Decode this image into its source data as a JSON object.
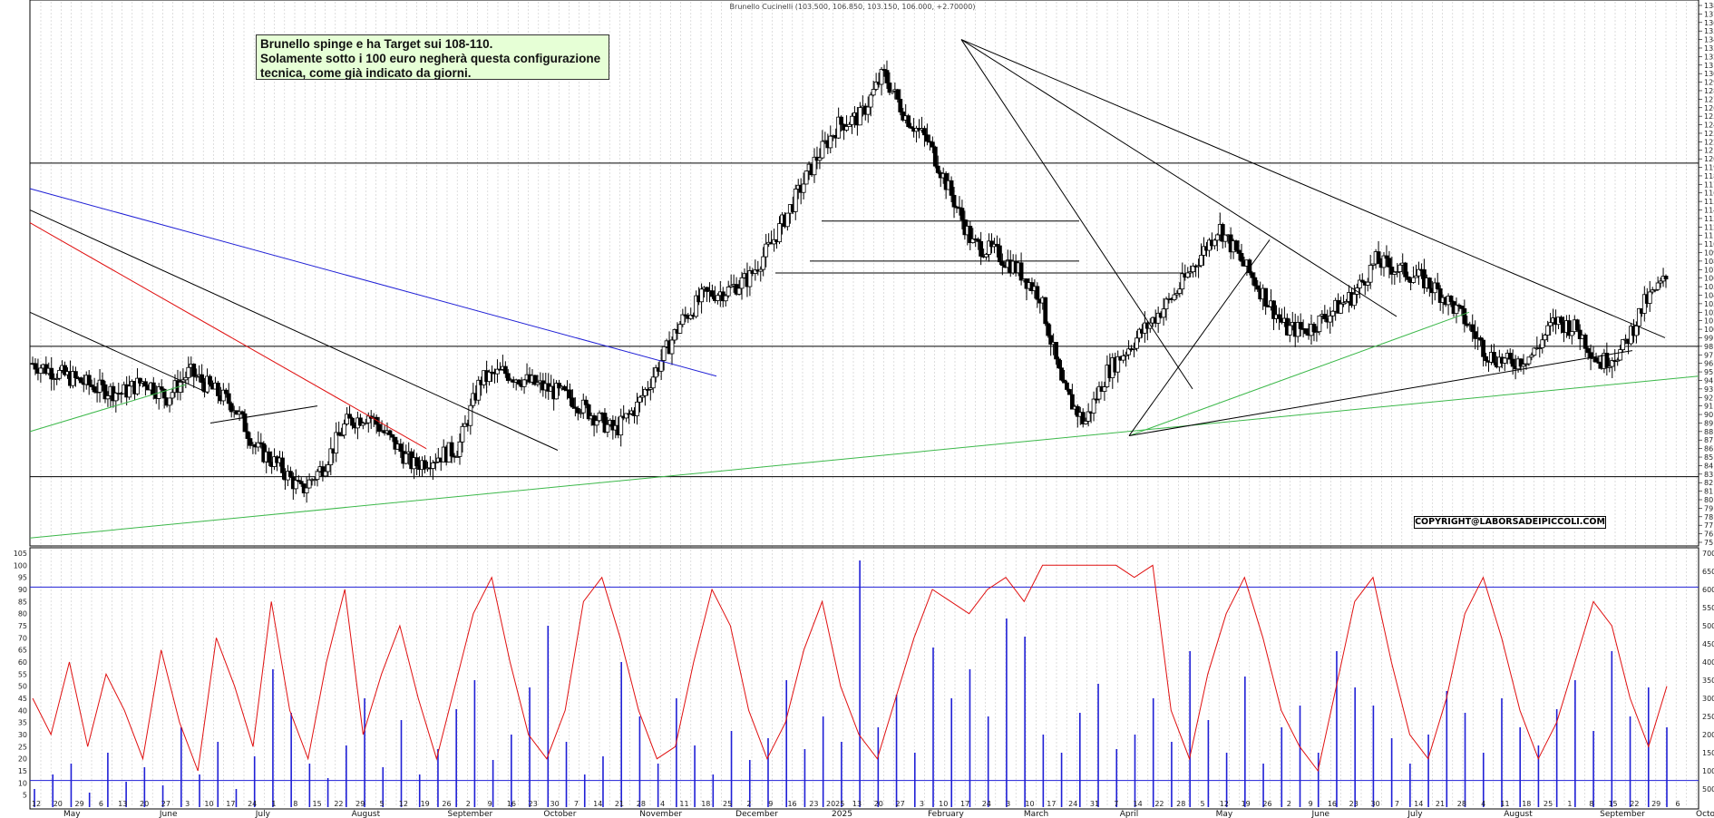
{
  "header": {
    "title": "Brunello Cucinelli (103.500, 106.850, 103.150, 106.000, +2.70000)"
  },
  "annotation": {
    "line1": "Brunello spinge e ha Target sui 108-110.",
    "line2": "Solamente sotto i 100 euro negherà questa configurazione",
    "line3": "tecnica, come già indicato da giorni."
  },
  "copyright": "COPYRIGHT@LABORSADEIPICCOLI.COM",
  "colors": {
    "candle": "#000000",
    "volume": "#1f1fd6",
    "oscillator": "#e01010",
    "band": "#1f1fd6",
    "trend_green": "#3cb84a",
    "trend_red": "#e01010",
    "trend_blue": "#1f1fd6"
  },
  "x_axis": {
    "days": [
      "12",
      "20",
      "29",
      "6",
      "13",
      "20",
      "27",
      "3",
      "10",
      "17",
      "24",
      "1",
      "8",
      "15",
      "22",
      "29",
      "5",
      "12",
      "19",
      "26",
      "2",
      "9",
      "16",
      "23",
      "30",
      "7",
      "14",
      "21",
      "28",
      "4",
      "11",
      "18",
      "25",
      "2",
      "9",
      "16",
      "23",
      "2025",
      "13",
      "20",
      "27",
      "3",
      "10",
      "17",
      "24",
      "3",
      "10",
      "17",
      "24",
      "31",
      "7",
      "14",
      "22",
      "28",
      "5",
      "12",
      "19",
      "26",
      "2",
      "9",
      "16",
      "23",
      "30",
      "7",
      "14",
      "21",
      "28",
      "4",
      "11",
      "18",
      "25",
      "1",
      "8",
      "15",
      "22",
      "29",
      "6"
    ],
    "months": [
      "May",
      "June",
      "July",
      "August",
      "September",
      "October",
      "November",
      "December",
      "2025",
      "February",
      "March",
      "April",
      "May",
      "June",
      "July",
      "August",
      "September",
      "October"
    ]
  },
  "chart_data": [
    {
      "type": "candlestick",
      "title": "Brunello Cucinelli (103.500, 106.850, 103.150, 106.000, +2.70000)",
      "ylim": [
        75,
        138
      ],
      "y_ticks_step": 1,
      "grid": "vertical dotted",
      "last_bar": {
        "open": 103.5,
        "high": 106.85,
        "low": 103.15,
        "close": 106.0,
        "change": 2.7
      },
      "horizontal_levels": [
        119.5,
        98.0,
        82.7
      ],
      "resistance_lines": [
        {
          "from": [
            112.7,
            "Dec"
          ],
          "to": [
            112.7,
            "Mar"
          ]
        },
        {
          "from": [
            108.0,
            "Dec"
          ],
          "to": [
            108.0,
            "Mar"
          ]
        },
        {
          "from": [
            106.6,
            "Nov"
          ],
          "to": [
            106.6,
            "Apr"
          ]
        }
      ],
      "price_path": [
        [
          0,
          96
        ],
        [
          10,
          95
        ],
        [
          20,
          94
        ],
        [
          30,
          93
        ],
        [
          40,
          92.5
        ],
        [
          50,
          94
        ],
        [
          60,
          92
        ],
        [
          70,
          95
        ],
        [
          80,
          93
        ],
        [
          90,
          91
        ],
        [
          100,
          86
        ],
        [
          110,
          84
        ],
        [
          120,
          81
        ],
        [
          130,
          84
        ],
        [
          140,
          89
        ],
        [
          150,
          90
        ],
        [
          160,
          87
        ],
        [
          170,
          84
        ],
        [
          180,
          85
        ],
        [
          190,
          86
        ],
        [
          200,
          94
        ],
        [
          210,
          95
        ],
        [
          220,
          94
        ],
        [
          230,
          93
        ],
        [
          240,
          92
        ],
        [
          250,
          90
        ],
        [
          260,
          88
        ],
        [
          270,
          91
        ],
        [
          280,
          96
        ],
        [
          290,
          101
        ],
        [
          300,
          104
        ],
        [
          310,
          104.5
        ],
        [
          320,
          106
        ],
        [
          330,
          110
        ],
        [
          340,
          115
        ],
        [
          350,
          120
        ],
        [
          360,
          124
        ],
        [
          370,
          125
        ],
        [
          380,
          130
        ],
        [
          390,
          125
        ],
        [
          400,
          122
        ],
        [
          410,
          116
        ],
        [
          420,
          110
        ],
        [
          430,
          109
        ],
        [
          440,
          107
        ],
        [
          450,
          104
        ],
        [
          460,
          93
        ],
        [
          470,
          89
        ],
        [
          480,
          95
        ],
        [
          490,
          98
        ],
        [
          500,
          101
        ],
        [
          510,
          104
        ],
        [
          520,
          108
        ],
        [
          530,
          112
        ],
        [
          540,
          108
        ],
        [
          550,
          104
        ],
        [
          560,
          100
        ],
        [
          570,
          100
        ],
        [
          580,
          102
        ],
        [
          590,
          104
        ],
        [
          600,
          108
        ],
        [
          610,
          107
        ],
        [
          620,
          106
        ],
        [
          630,
          104
        ],
        [
          640,
          101
        ],
        [
          650,
          97
        ],
        [
          660,
          96
        ],
        [
          670,
          97
        ],
        [
          680,
          101
        ],
        [
          690,
          100
        ],
        [
          700,
          96
        ],
        [
          710,
          97.5
        ],
        [
          720,
          103
        ],
        [
          730,
          106
        ]
      ]
    },
    {
      "type": "line+bar",
      "ylim": [
        0,
        105
      ],
      "y2lim": [
        0,
        70000
      ],
      "y_ticks_step": 5,
      "y2_ticks_step": 5000,
      "upper_band": 91,
      "lower_band": 11,
      "oscillator": [
        45,
        30,
        60,
        25,
        55,
        40,
        20,
        65,
        35,
        15,
        70,
        50,
        25,
        85,
        40,
        20,
        60,
        90,
        30,
        55,
        75,
        45,
        20,
        50,
        80,
        95,
        60,
        30,
        20,
        40,
        85,
        95,
        70,
        40,
        20,
        25,
        60,
        90,
        75,
        40,
        20,
        35,
        65,
        85,
        50,
        30,
        20,
        45,
        70,
        90,
        85,
        80,
        90,
        95,
        85,
        100,
        100,
        100,
        100,
        100,
        95,
        100,
        40,
        20,
        55,
        80,
        95,
        70,
        40,
        25,
        15,
        50,
        85,
        95,
        60,
        30,
        20,
        45,
        80,
        95,
        70,
        40,
        20,
        35,
        60,
        85,
        75,
        45,
        25,
        50
      ],
      "volume": [
        5000,
        9000,
        12000,
        4000,
        15000,
        7000,
        11000,
        6000,
        22000,
        9000,
        18000,
        5000,
        14000,
        38000,
        26000,
        12000,
        8000,
        17000,
        30000,
        11000,
        24000,
        9000,
        16000,
        27000,
        35000,
        13000,
        20000,
        33000,
        50000,
        18000,
        9000,
        14000,
        40000,
        25000,
        12000,
        30000,
        17000,
        9000,
        21000,
        13000,
        19000,
        35000,
        16000,
        25000,
        18000,
        68000,
        22000,
        31000,
        15000,
        44000,
        30000,
        38000,
        25000,
        52000,
        47000,
        20000,
        15000,
        26000,
        34000,
        16000,
        20000,
        30000,
        18000,
        43000,
        24000,
        15000,
        36000,
        12000,
        22000,
        28000,
        15000,
        43000,
        33000,
        28000,
        19000,
        12000,
        20000,
        32000,
        26000,
        15000,
        30000,
        22000,
        17000,
        27000,
        35000,
        21000,
        43000,
        25000,
        33000,
        22000
      ]
    }
  ]
}
